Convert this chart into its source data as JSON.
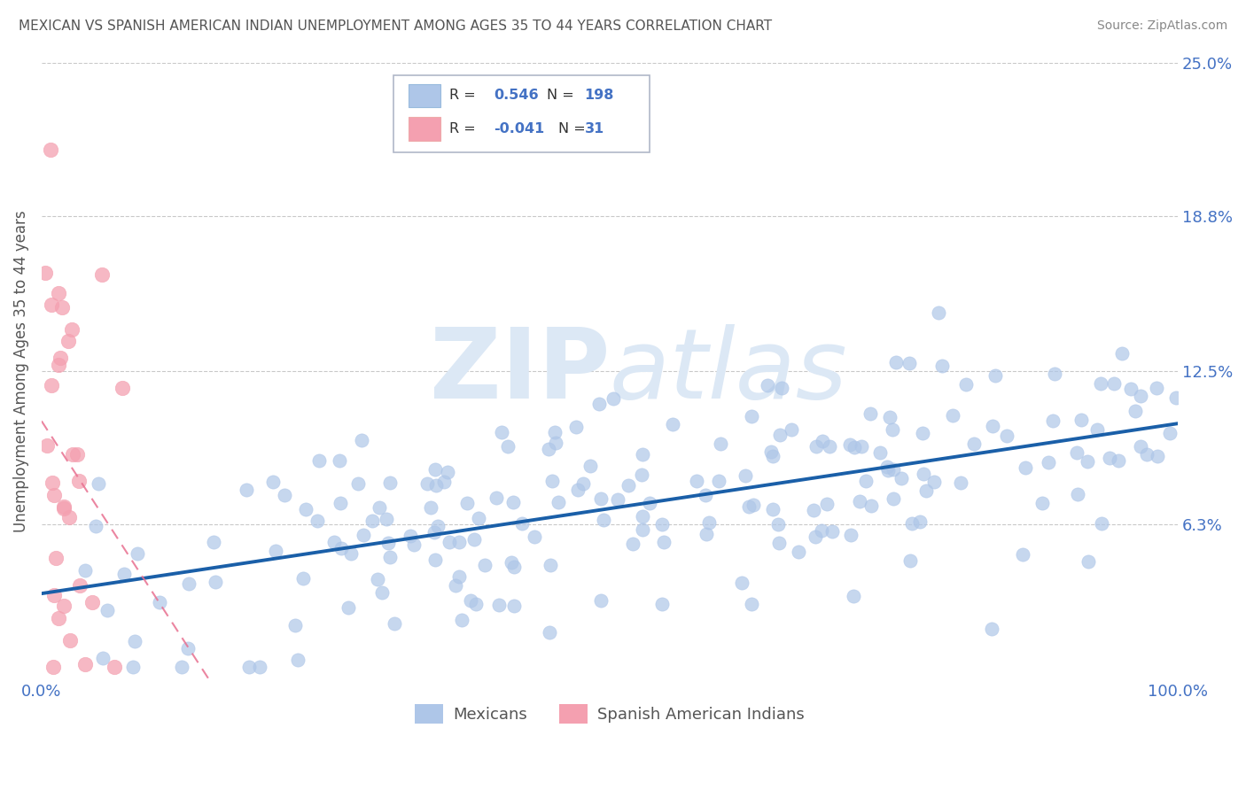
{
  "title": "MEXICAN VS SPANISH AMERICAN INDIAN UNEMPLOYMENT AMONG AGES 35 TO 44 YEARS CORRELATION CHART",
  "source": "Source: ZipAtlas.com",
  "ylabel": "Unemployment Among Ages 35 to 44 years",
  "xlim": [
    0,
    1.0
  ],
  "ylim": [
    0,
    0.25
  ],
  "yticks": [
    0.063,
    0.125,
    0.188,
    0.25
  ],
  "ytick_labels": [
    "6.3%",
    "12.5%",
    "18.8%",
    "25.0%"
  ],
  "xtick_labels": [
    "0.0%",
    "100.0%"
  ],
  "r_mexican": 0.546,
  "n_mexican": 198,
  "r_spanish": -0.041,
  "n_spanish": 31,
  "mexican_color": "#aec6e8",
  "spanish_color": "#f4a0b0",
  "mexican_line_color": "#1a5fa8",
  "spanish_line_color": "#e87090",
  "title_color": "#555555",
  "source_color": "#888888",
  "label_color": "#4472c4",
  "watermark_zip": "ZIP",
  "watermark_atlas": "atlas",
  "watermark_color": "#dce8f5",
  "background_color": "#ffffff",
  "grid_color": "#bbbbbb",
  "legend_box_color_mexican": "#aec6e8",
  "legend_box_color_spanish": "#f4a0b0",
  "legend_value_color": "#4472c4"
}
